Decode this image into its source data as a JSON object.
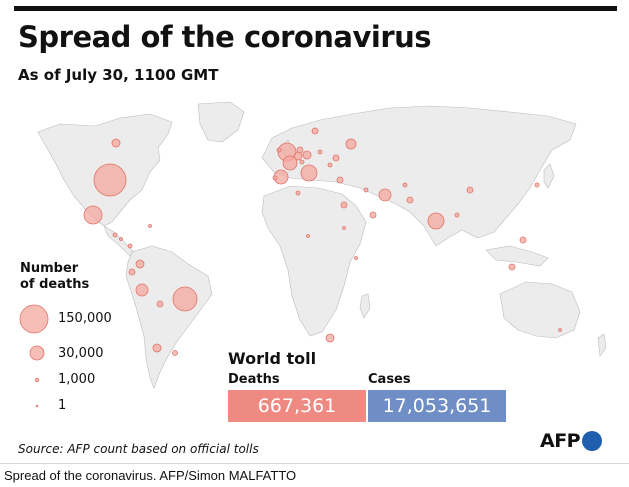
{
  "header": {
    "title": "Spread of the coronavirus",
    "subtitle": "As of July 30, 1100 GMT"
  },
  "legend": {
    "title_line1": "Number",
    "title_line2": "of deaths",
    "items": [
      {
        "label": "150,000",
        "value": 150000
      },
      {
        "label": "30,000",
        "value": 30000
      },
      {
        "label": "1,000",
        "value": 1000
      },
      {
        "label": "1",
        "value": 1
      }
    ]
  },
  "world_toll": {
    "title": "World toll",
    "deaths_label": "Deaths",
    "deaths_value": "667,361",
    "cases_label": "Cases",
    "cases_value": "17,053,651"
  },
  "source": "Source: AFP count based on official tolls",
  "logo": {
    "text": "AFP"
  },
  "caption": "Spread of the coronavirus. AFP/Simon MALFATTO",
  "colors": {
    "bubble_fill": "#f4a8a0",
    "bubble_stroke": "#e07368",
    "deaths_box": "#ef8a82",
    "cases_box": "#6f8ec6",
    "logo_dot": "#1f5fae",
    "land": "#ececec"
  }
}
